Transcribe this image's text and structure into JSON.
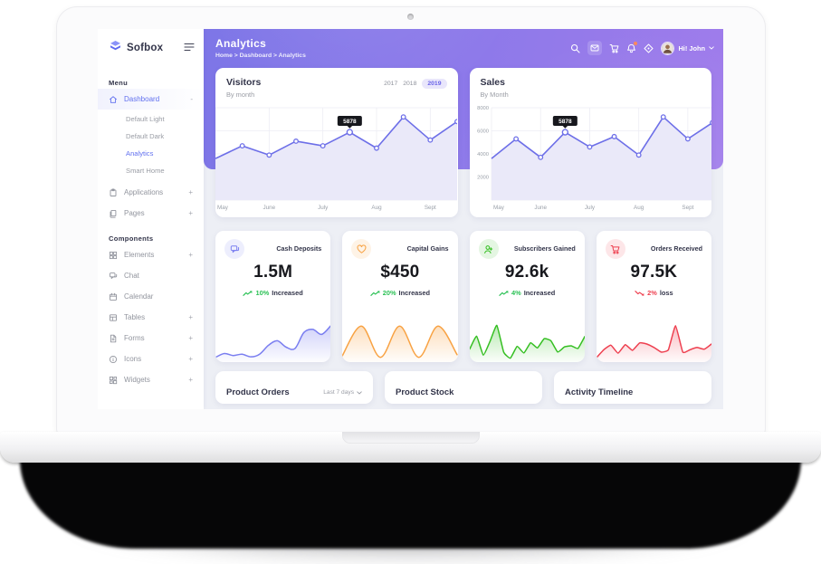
{
  "brand": {
    "name": "Sofbox"
  },
  "header": {
    "title": "Analytics",
    "breadcrumb": "Home > Dashboard > Analytics",
    "user_greeting": "Hi! John"
  },
  "sidebar": {
    "menu_label": "Menu",
    "components_label": "Components",
    "dashboard": {
      "label": "Dashboard",
      "expand": "-"
    },
    "dashboard_sub": [
      "Default Light",
      "Default Dark",
      "Analytics",
      "Smart Home"
    ],
    "applications": {
      "label": "Applications",
      "expand": "+"
    },
    "pages": {
      "label": "Pages",
      "expand": "+"
    },
    "component_items": [
      {
        "label": "Elements",
        "expand": "+"
      },
      {
        "label": "Chat",
        "expand": ""
      },
      {
        "label": "Calendar",
        "expand": ""
      },
      {
        "label": "Tables",
        "expand": "+"
      },
      {
        "label": "Forms",
        "expand": "+"
      },
      {
        "label": "Icons",
        "expand": "+"
      },
      {
        "label": "Widgets",
        "expand": "+"
      }
    ]
  },
  "visitors_card": {
    "title": "Visitors",
    "subtitle": "By month",
    "years": [
      "2017",
      "2018",
      "2019"
    ],
    "active_year": "2019",
    "chart_data": {
      "type": "line",
      "x_labels": [
        "May",
        "June",
        "July",
        "Aug",
        "Sept"
      ],
      "values": [
        3600,
        4700,
        3900,
        5100,
        4700,
        5878,
        4500,
        7200,
        5200,
        6800
      ],
      "ylim": [
        0,
        8000
      ],
      "tooltip_index": 5,
      "tooltip_value": "5878",
      "line_color": "#6d6fe8",
      "fill_color": "#eae9f9"
    }
  },
  "sales_card": {
    "title": "Sales",
    "subtitle": "By Month",
    "chart_data": {
      "type": "line",
      "x_labels": [
        "May",
        "June",
        "July",
        "Aug",
        "Sept"
      ],
      "y_labels": [
        "8000",
        "6000",
        "4000",
        "2000"
      ],
      "values": [
        3600,
        5300,
        3700,
        5878,
        4600,
        5500,
        3900,
        7200,
        5300,
        6700
      ],
      "ylim": [
        0,
        8000
      ],
      "tooltip_index": 3,
      "tooltip_value": "5878",
      "line_color": "#6d6fe8",
      "fill_color": "#eae9f9"
    }
  },
  "stats": [
    {
      "label": "Cash Deposits",
      "value": "1.5M",
      "delta_pct": "10%",
      "delta_word": "Increased",
      "trend": "up",
      "accent": "#7a7ef0",
      "spark": [
        2.5,
        3.1,
        2.8,
        3.0,
        2.6,
        3.0,
        4.4,
        5.1,
        4.1,
        3.9,
        6.4,
        6.9,
        6.1,
        7.4
      ],
      "smooth": 1
    },
    {
      "label": "Capital Gains",
      "value": "$450",
      "delta_pct": "20%",
      "delta_word": "Increased",
      "trend": "up",
      "accent": "#f8a243",
      "spark": [
        2.2,
        6.8,
        2.0,
        6.8,
        2.0,
        6.8,
        2.4
      ],
      "smooth": 1
    },
    {
      "label": "Subscribers Gained",
      "value": "92.6k",
      "delta_pct": "4%",
      "delta_word": "Increased",
      "trend": "up",
      "accent": "#35bf22",
      "spark": [
        3,
        5.5,
        1.8,
        4.5,
        7.6,
        2.4,
        1.2,
        3.5,
        2.2,
        4.2,
        3.2,
        5,
        4.6,
        2.4,
        3.4,
        3.6,
        3.1,
        5.4
      ],
      "smooth": 0.4
    },
    {
      "label": "Orders Received",
      "value": "97.5K",
      "delta_pct": "2%",
      "delta_word": "loss",
      "trend": "down",
      "accent": "#ee4050",
      "spark": [
        1.8,
        3.2,
        4.0,
        2.6,
        4.1,
        3.1,
        4.4,
        4.2,
        3.6,
        2.8,
        3.2,
        7.4,
        2.8,
        3.2,
        3.6,
        3.3,
        4.2
      ],
      "smooth": 0.4
    }
  ],
  "bottom_cards": [
    {
      "title": "Product Orders",
      "filter": "Last 7 days"
    },
    {
      "title": "Product Stock",
      "filter": ""
    },
    {
      "title": "Activity Timeline",
      "filter": ""
    }
  ]
}
